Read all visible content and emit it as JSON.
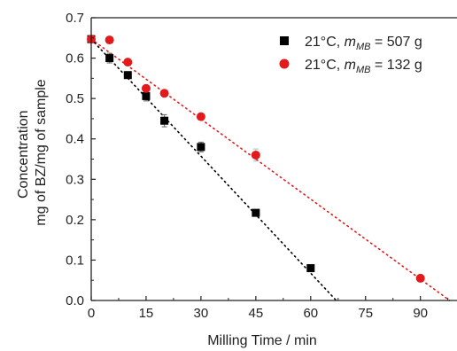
{
  "chart_data": {
    "type": "scatter",
    "xlabel": "Milling Time / min",
    "ylabel_lines": [
      "Concentration",
      "mg of BZ/mg of sample"
    ],
    "xlim": [
      0,
      100
    ],
    "ylim": [
      0.0,
      0.7
    ],
    "xticks": [
      0,
      15,
      30,
      45,
      60,
      75,
      90
    ],
    "yticks": [
      0.0,
      0.1,
      0.2,
      0.3,
      0.4,
      0.5,
      0.6,
      0.7
    ],
    "ytick_labels": [
      "0.0",
      "0.1",
      "0.2",
      "0.3",
      "0.4",
      "0.5",
      "0.6",
      "0.7"
    ],
    "grid": false,
    "legend_position": "top-right",
    "series": [
      {
        "name": "21°C, m_MB = 507 g",
        "legend_prefix": "21°C, ",
        "legend_m": "m",
        "legend_sub": "MB",
        "legend_suffix": " = 507 g",
        "marker": "square",
        "color": "#000000",
        "x": [
          0,
          5,
          10,
          15,
          20,
          30,
          45,
          60
        ],
        "y": [
          0.647,
          0.6,
          0.558,
          0.506,
          0.445,
          0.38,
          0.217,
          0.08
        ],
        "yerr": [
          0.0,
          0.012,
          0.0,
          0.012,
          0.015,
          0.012,
          0.0,
          0.0
        ],
        "fit_line": {
          "x": [
            0,
            67
          ],
          "y": [
            0.647,
            0.0
          ],
          "color": "#000000"
        }
      },
      {
        "name": "21°C, m_MB = 132 g",
        "legend_prefix": "21°C, ",
        "legend_m": "m",
        "legend_sub": "MB",
        "legend_suffix": " = 132 g",
        "marker": "circle",
        "color": "#e31a1c",
        "x": [
          0,
          5,
          10,
          15,
          20,
          30,
          45,
          90
        ],
        "y": [
          0.647,
          0.645,
          0.59,
          0.525,
          0.513,
          0.455,
          0.36,
          0.055
        ],
        "yerr": [
          0.0,
          0.0,
          0.0,
          0.0,
          0.0,
          0.0,
          0.015,
          0.0
        ],
        "fit_line": {
          "x": [
            0,
            98
          ],
          "y": [
            0.647,
            0.0
          ],
          "color": "#e31a1c"
        }
      }
    ]
  }
}
